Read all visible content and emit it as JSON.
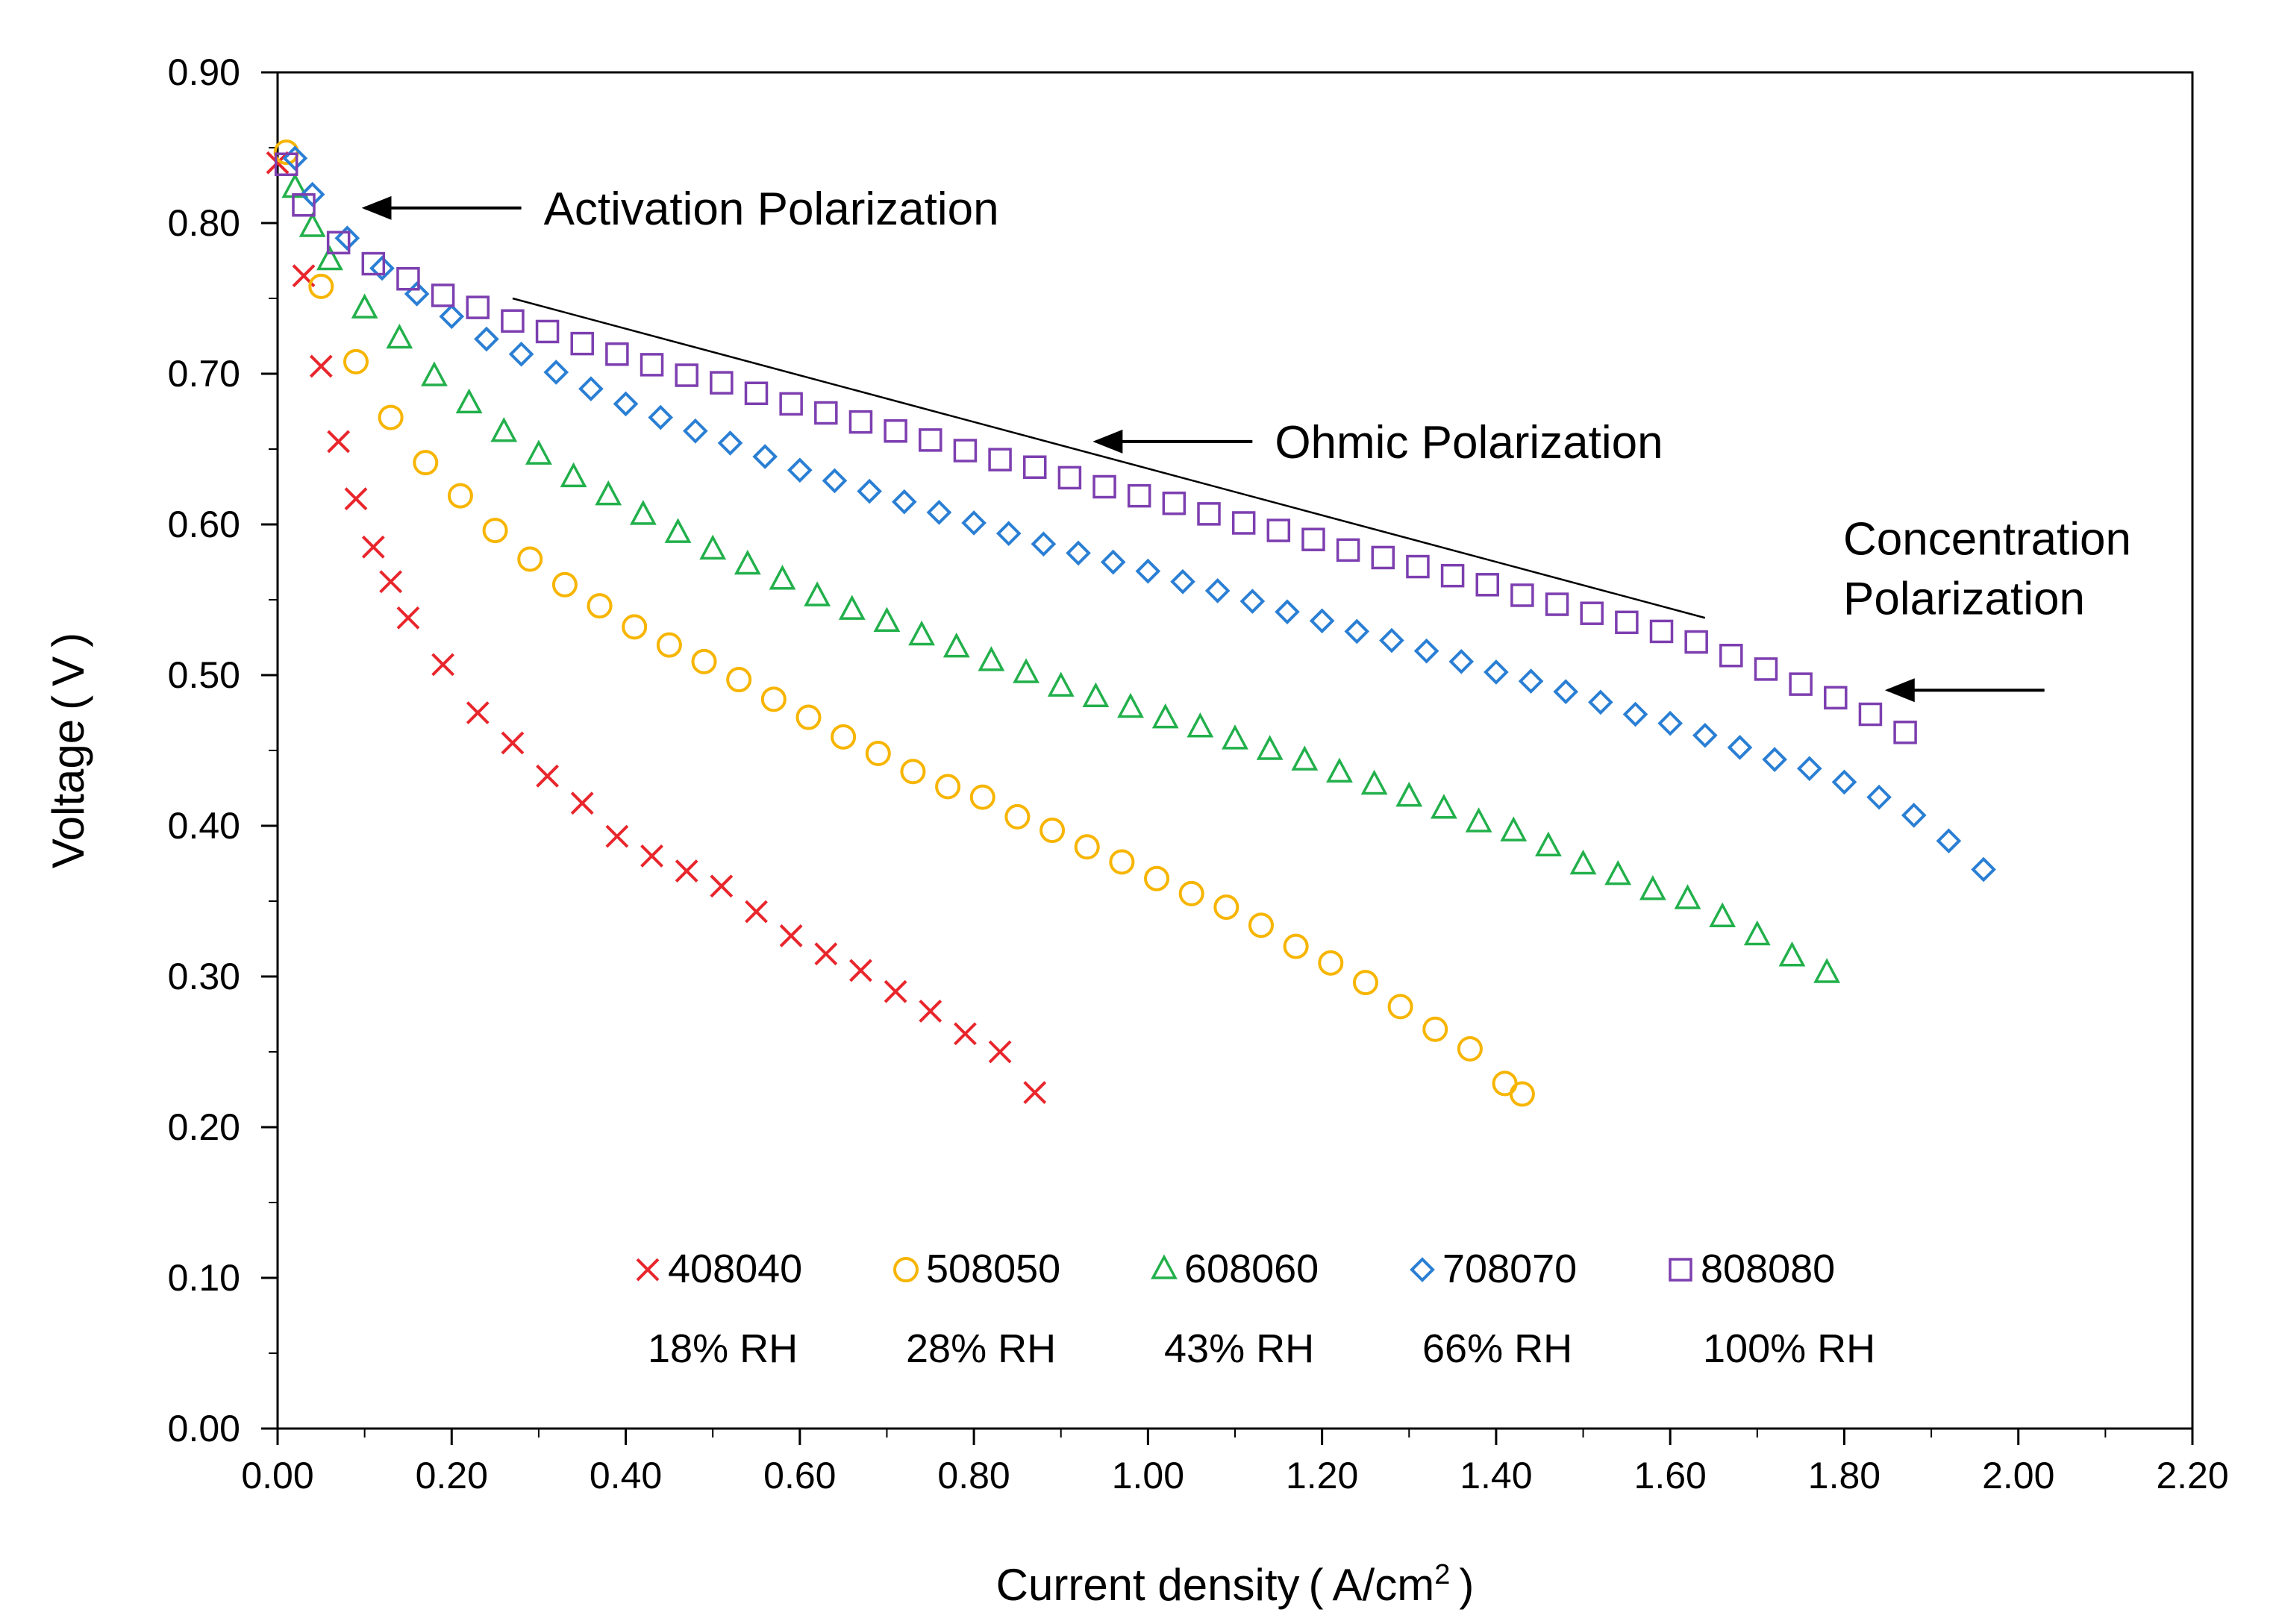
{
  "chart_data": {
    "type": "scatter",
    "title": "",
    "xlabel": "Current density ( A/cm",
    "xlabel_sup": "2",
    "xlabel_close": " )",
    "ylabel": "Voltage ( V )",
    "xlim": [
      0,
      2.2
    ],
    "ylim": [
      0,
      0.9
    ],
    "x_ticks": [
      "0.00",
      "0.20",
      "0.40",
      "0.60",
      "0.80",
      "1.00",
      "1.20",
      "1.40",
      "1.60",
      "1.80",
      "2.00",
      "2.20"
    ],
    "y_ticks": [
      "0.00",
      "0.10",
      "0.20",
      "0.30",
      "0.40",
      "0.50",
      "0.60",
      "0.70",
      "0.80",
      "0.90"
    ],
    "grid": false,
    "legend_position": "bottom-center",
    "series": [
      {
        "name": "408040",
        "rh": "18% RH",
        "marker": "x",
        "color": "#e8262c",
        "x": [
          0.0,
          0.03,
          0.05,
          0.07,
          0.09,
          0.11,
          0.13,
          0.15,
          0.19,
          0.23,
          0.27,
          0.31,
          0.35,
          0.39,
          0.43,
          0.47,
          0.51,
          0.55,
          0.59,
          0.63,
          0.67,
          0.71,
          0.75,
          0.79,
          0.83,
          0.87
        ],
        "y": [
          0.84,
          0.765,
          0.705,
          0.655,
          0.617,
          0.585,
          0.562,
          0.538,
          0.507,
          0.475,
          0.455,
          0.433,
          0.415,
          0.393,
          0.38,
          0.37,
          0.36,
          0.343,
          0.327,
          0.315,
          0.304,
          0.29,
          0.277,
          0.262,
          0.25,
          0.223
        ]
      },
      {
        "name": "508050",
        "rh": "28% RH",
        "marker": "o",
        "color": "#f7b500",
        "x": [
          0.01,
          0.05,
          0.09,
          0.13,
          0.17,
          0.21,
          0.25,
          0.29,
          0.33,
          0.37,
          0.41,
          0.45,
          0.49,
          0.53,
          0.57,
          0.61,
          0.65,
          0.69,
          0.73,
          0.77,
          0.81,
          0.85,
          0.89,
          0.93,
          0.97,
          1.01,
          1.05,
          1.09,
          1.13,
          1.17,
          1.21,
          1.25,
          1.29,
          1.33,
          1.37,
          1.41,
          1.43
        ],
        "y": [
          0.847,
          0.758,
          0.708,
          0.671,
          0.641,
          0.619,
          0.596,
          0.577,
          0.56,
          0.546,
          0.532,
          0.52,
          0.509,
          0.497,
          0.484,
          0.472,
          0.459,
          0.448,
          0.436,
          0.426,
          0.419,
          0.406,
          0.397,
          0.386,
          0.376,
          0.365,
          0.355,
          0.346,
          0.334,
          0.32,
          0.309,
          0.296,
          0.28,
          0.265,
          0.252,
          0.229,
          0.222
        ]
      },
      {
        "name": "608060",
        "rh": "43% RH",
        "marker": "triangle",
        "color": "#22b04b",
        "x": [
          0.02,
          0.04,
          0.06,
          0.1,
          0.14,
          0.18,
          0.22,
          0.26,
          0.3,
          0.34,
          0.38,
          0.42,
          0.46,
          0.5,
          0.54,
          0.58,
          0.62,
          0.66,
          0.7,
          0.74,
          0.78,
          0.82,
          0.86,
          0.9,
          0.94,
          0.98,
          1.02,
          1.06,
          1.1,
          1.14,
          1.18,
          1.22,
          1.26,
          1.3,
          1.34,
          1.38,
          1.42,
          1.46,
          1.5,
          1.54,
          1.58,
          1.62,
          1.66,
          1.7,
          1.74,
          1.78
        ],
        "y": [
          0.823,
          0.797,
          0.775,
          0.743,
          0.723,
          0.698,
          0.68,
          0.661,
          0.646,
          0.631,
          0.619,
          0.606,
          0.594,
          0.583,
          0.573,
          0.563,
          0.552,
          0.543,
          0.535,
          0.526,
          0.518,
          0.509,
          0.501,
          0.492,
          0.485,
          0.478,
          0.471,
          0.465,
          0.457,
          0.45,
          0.443,
          0.435,
          0.427,
          0.419,
          0.411,
          0.402,
          0.396,
          0.386,
          0.374,
          0.367,
          0.357,
          0.351,
          0.339,
          0.327,
          0.313,
          0.302
        ]
      },
      {
        "name": "708070",
        "rh": "66% RH",
        "marker": "diamond",
        "color": "#2a7fd4",
        "x": [
          0.02,
          0.04,
          0.08,
          0.12,
          0.16,
          0.2,
          0.24,
          0.28,
          0.32,
          0.36,
          0.4,
          0.44,
          0.48,
          0.52,
          0.56,
          0.6,
          0.64,
          0.68,
          0.72,
          0.76,
          0.8,
          0.84,
          0.88,
          0.92,
          0.96,
          1.0,
          1.04,
          1.08,
          1.12,
          1.16,
          1.2,
          1.24,
          1.28,
          1.32,
          1.36,
          1.4,
          1.44,
          1.48,
          1.52,
          1.56,
          1.6,
          1.64,
          1.68,
          1.72,
          1.76,
          1.8,
          1.84,
          1.88,
          1.92,
          1.96
        ],
        "y": [
          0.843,
          0.819,
          0.79,
          0.77,
          0.753,
          0.738,
          0.723,
          0.713,
          0.701,
          0.69,
          0.68,
          0.671,
          0.662,
          0.654,
          0.645,
          0.636,
          0.629,
          0.622,
          0.615,
          0.608,
          0.601,
          0.594,
          0.587,
          0.581,
          0.575,
          0.569,
          0.562,
          0.556,
          0.549,
          0.542,
          0.536,
          0.529,
          0.523,
          0.516,
          0.509,
          0.502,
          0.496,
          0.489,
          0.482,
          0.474,
          0.468,
          0.46,
          0.452,
          0.444,
          0.438,
          0.429,
          0.419,
          0.407,
          0.39,
          0.371
        ]
      },
      {
        "name": "808080",
        "rh": "100% RH",
        "marker": "square",
        "color": "#7d3fb0",
        "x": [
          0.01,
          0.03,
          0.07,
          0.11,
          0.15,
          0.19,
          0.23,
          0.27,
          0.31,
          0.35,
          0.39,
          0.43,
          0.47,
          0.51,
          0.55,
          0.59,
          0.63,
          0.67,
          0.71,
          0.75,
          0.79,
          0.83,
          0.87,
          0.91,
          0.95,
          0.99,
          1.03,
          1.07,
          1.11,
          1.15,
          1.19,
          1.23,
          1.27,
          1.31,
          1.35,
          1.39,
          1.43,
          1.47,
          1.51,
          1.55,
          1.59,
          1.63,
          1.67,
          1.71,
          1.75,
          1.79,
          1.83,
          1.87
        ],
        "y": [
          0.839,
          0.812,
          0.787,
          0.773,
          0.763,
          0.752,
          0.744,
          0.735,
          0.728,
          0.72,
          0.713,
          0.706,
          0.699,
          0.694,
          0.687,
          0.68,
          0.674,
          0.668,
          0.662,
          0.656,
          0.649,
          0.643,
          0.638,
          0.631,
          0.625,
          0.619,
          0.614,
          0.607,
          0.601,
          0.596,
          0.59,
          0.583,
          0.578,
          0.572,
          0.566,
          0.56,
          0.553,
          0.547,
          0.541,
          0.535,
          0.529,
          0.522,
          0.513,
          0.504,
          0.494,
          0.485,
          0.474,
          0.462
        ]
      }
    ],
    "annotations": [
      {
        "id": "activation",
        "lines": [
          "Activation Polarization"
        ],
        "arrow_tip": [
          0.1,
          0.81
        ],
        "arrow_tail": [
          0.28,
          0.81
        ]
      },
      {
        "id": "ohmic",
        "lines": [
          "Ohmic Polarization"
        ],
        "arrow_tip": [
          0.94,
          0.655
        ],
        "arrow_tail": [
          1.12,
          0.655
        ],
        "trend_line": [
          [
            0.27,
            0.75
          ],
          [
            1.64,
            0.538
          ]
        ]
      },
      {
        "id": "concentration",
        "lines": [
          "Concentration",
          "Polarization"
        ],
        "arrow_tip": [
          1.85,
          0.49
        ],
        "arrow_tail": [
          2.03,
          0.49
        ]
      }
    ]
  }
}
